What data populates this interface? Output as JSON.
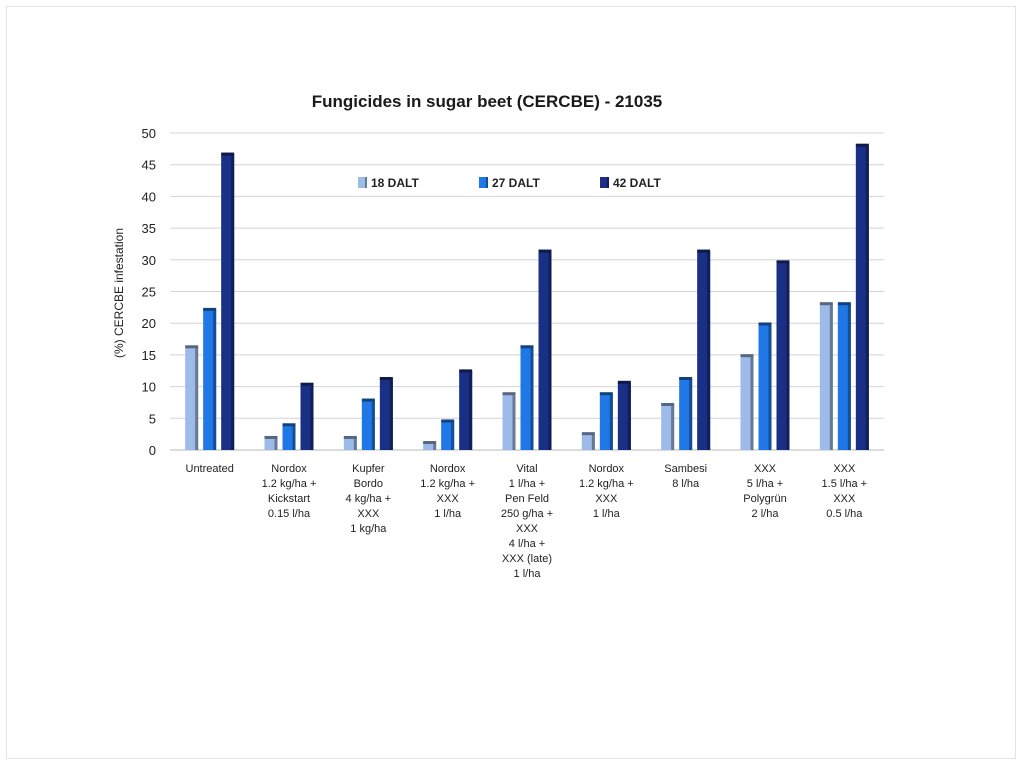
{
  "chart_data": {
    "type": "bar",
    "title": "Fungicides  in sugar beet (CERCBE) - 21035",
    "ylabel": "(%) CERCBE infestation",
    "xlabel": "",
    "ylim": [
      0,
      50
    ],
    "yticks": [
      0,
      5,
      10,
      15,
      20,
      25,
      30,
      35,
      40,
      45,
      50
    ],
    "grid": true,
    "legend_position": "top-center",
    "categories": [
      [
        "Untreated"
      ],
      [
        "Nordox",
        "1.2 kg/ha +",
        "Kickstart",
        "0.15 l/ha"
      ],
      [
        "Kupfer",
        "Bordo",
        "4 kg/ha +",
        "XXX",
        "1 kg/ha"
      ],
      [
        "Nordox",
        "1.2 kg/ha +",
        "XXX",
        "1 l/ha"
      ],
      [
        "Vital",
        "1 l/ha +",
        "Pen Feld",
        "250 g/ha +",
        "XXX",
        "4 l/ha +",
        "XXX (late)",
        "1 l/ha"
      ],
      [
        "Nordox",
        "1.2 kg/ha +",
        "XXX",
        "1 l/ha"
      ],
      [
        "Sambesi",
        "8 l/ha"
      ],
      [
        "XXX",
        "5 l/ha +",
        "Polygrün",
        "2 l/ha"
      ],
      [
        "XXX",
        "1.5 l/ha +",
        "XXX",
        "0.5 l/ha"
      ]
    ],
    "series": [
      {
        "name": "18 DALT",
        "color": "#9dbbe8",
        "values": [
          16.2,
          1.9,
          1.9,
          1.1,
          8.8,
          2.5,
          7.1,
          14.8,
          23.0
        ]
      },
      {
        "name": "27 DALT",
        "color": "#1f78e6",
        "values": [
          22.1,
          3.9,
          7.8,
          4.5,
          16.2,
          8.8,
          11.2,
          19.8,
          23.0
        ]
      },
      {
        "name": "42 DALT",
        "color": "#1a2f86",
        "values": [
          46.6,
          10.3,
          11.2,
          12.4,
          31.3,
          10.6,
          31.3,
          29.6,
          48.0
        ]
      }
    ]
  }
}
